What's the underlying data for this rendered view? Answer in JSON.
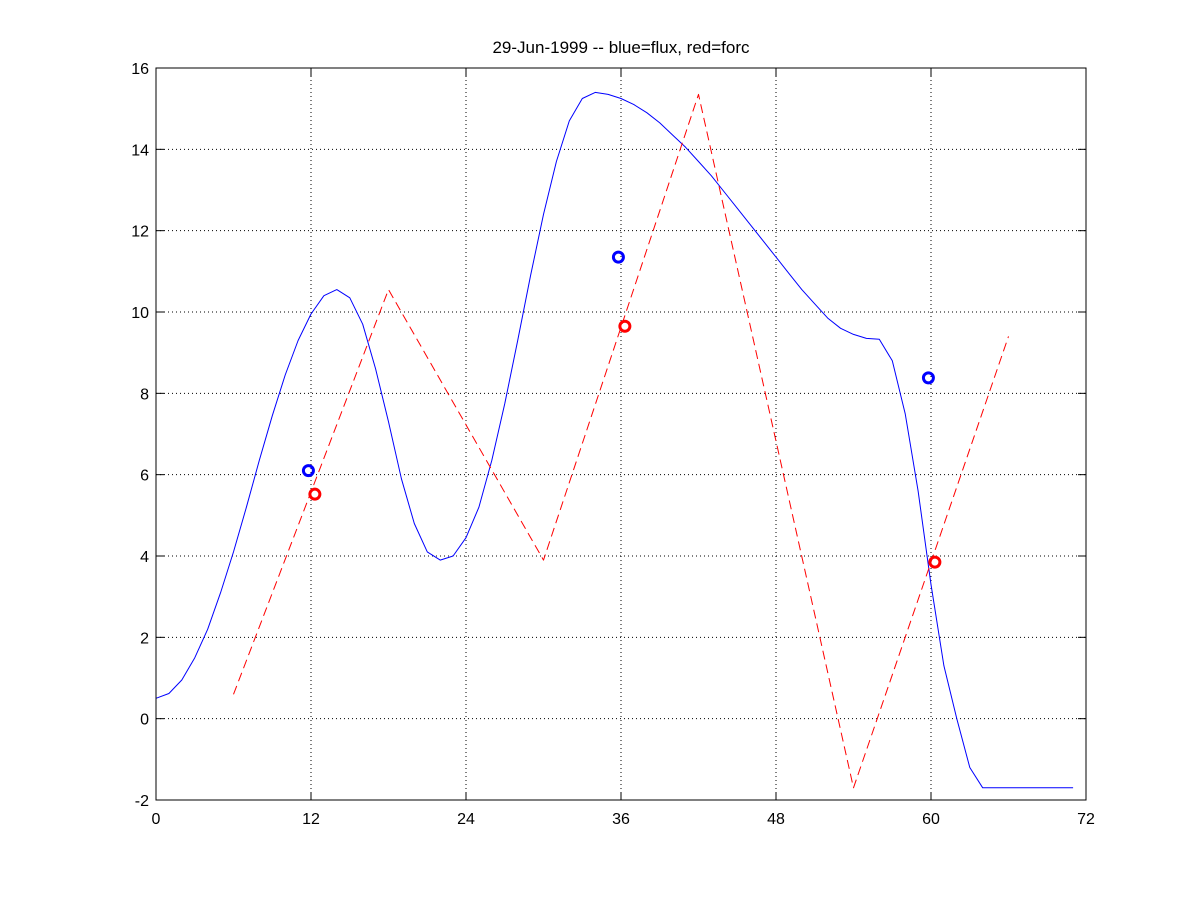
{
  "chart_data": {
    "type": "line",
    "title": "29-Jun-1999 -- blue=flux, red=forc",
    "xlabel": "",
    "ylabel": "",
    "xlim": [
      0,
      72
    ],
    "ylim": [
      -2,
      16
    ],
    "xticks": [
      0,
      12,
      24,
      36,
      48,
      60,
      72
    ],
    "yticks": [
      -2,
      0,
      2,
      4,
      6,
      8,
      10,
      12,
      14,
      16
    ],
    "grid": true,
    "colors": {
      "flux": "#0000ff",
      "forc": "#ff0000",
      "axes": "#000000",
      "grid": "#000000",
      "background": "#ffffff"
    },
    "series": [
      {
        "key": "flux",
        "style": "solid",
        "x": [
          0,
          1,
          2,
          3,
          4,
          5,
          6,
          7,
          8,
          9,
          10,
          11,
          12,
          13,
          14,
          15,
          16,
          17,
          18,
          19,
          20,
          21,
          22,
          23,
          24,
          25,
          26,
          27,
          28,
          29,
          30,
          31,
          32,
          33,
          34,
          35,
          36,
          37,
          38,
          39,
          40,
          41,
          42,
          43,
          44,
          45,
          46,
          47,
          48,
          49,
          50,
          51,
          52,
          53,
          54,
          55,
          56,
          57,
          58,
          59,
          60,
          61,
          62,
          63,
          64,
          65,
          66,
          67,
          68,
          69,
          70,
          71
        ],
        "y": [
          0.5,
          0.62,
          0.95,
          1.5,
          2.2,
          3.1,
          4.1,
          5.2,
          6.35,
          7.45,
          8.45,
          9.3,
          9.95,
          10.4,
          10.55,
          10.35,
          9.7,
          8.6,
          7.3,
          5.9,
          4.8,
          4.1,
          3.9,
          4.0,
          4.45,
          5.2,
          6.35,
          7.75,
          9.3,
          10.9,
          12.4,
          13.7,
          14.7,
          15.25,
          15.4,
          15.35,
          15.25,
          15.1,
          14.9,
          14.65,
          14.35,
          14.05,
          13.7,
          13.35,
          12.95,
          12.55,
          12.15,
          11.75,
          11.35,
          10.95,
          10.55,
          10.2,
          9.85,
          9.6,
          9.45,
          9.35,
          9.33,
          8.8,
          7.5,
          5.6,
          3.3,
          1.3,
          0.0,
          -1.2,
          -1.7,
          -1.7,
          -1.7,
          -1.7,
          -1.7,
          -1.7,
          -1.7,
          -1.7
        ]
      },
      {
        "key": "forc",
        "style": "dashed",
        "x": [
          6,
          18,
          30,
          42,
          54,
          66
        ],
        "y": [
          0.6,
          10.55,
          3.9,
          15.35,
          -1.7,
          9.4
        ]
      },
      {
        "key": "flux-points",
        "style": "markers",
        "marker": "circle",
        "color_key": "flux",
        "x": [
          11.8,
          35.8,
          59.8
        ],
        "y": [
          6.1,
          11.35,
          8.38
        ]
      },
      {
        "key": "forc-points",
        "style": "markers",
        "marker": "circle",
        "color_key": "forc",
        "x": [
          12.3,
          36.3,
          60.3
        ],
        "y": [
          5.52,
          9.65,
          3.85
        ]
      }
    ]
  }
}
